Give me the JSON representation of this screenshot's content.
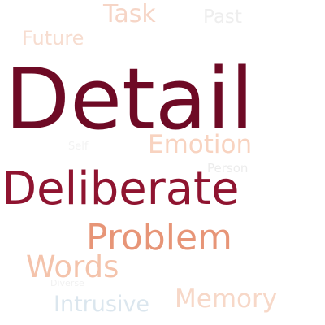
{
  "words": {
    "detail": {
      "text": "Detail",
      "color": "#6e0a25"
    },
    "deliberate": {
      "text": "Deliberate",
      "color": "#8f1430"
    },
    "problem": {
      "text": "Problem",
      "color": "#e79577"
    },
    "words": {
      "text": "Words",
      "color": "#f4c3ab"
    },
    "emotion": {
      "text": "Emotion",
      "color": "#f8d3c0"
    },
    "memory": {
      "text": "Memory",
      "color": "#f7d8c8"
    },
    "intrusive": {
      "text": "Intrusive",
      "color": "#dbe6ee"
    },
    "task": {
      "text": "Task",
      "color": "#f6d5c6"
    },
    "future": {
      "text": "Future",
      "color": "#f7ddd0"
    },
    "past": {
      "text": "Past",
      "color": "#eeeeee"
    },
    "person": {
      "text": "Person",
      "color": "#ececec"
    },
    "self": {
      "text": "Self",
      "color": "#f3f3f3"
    },
    "unread": {
      "text": "Diverse",
      "color": "#f1f1f1"
    }
  }
}
